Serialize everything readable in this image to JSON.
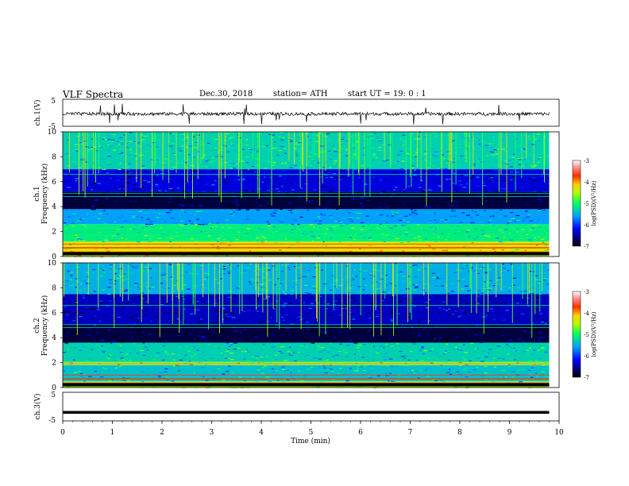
{
  "header": {
    "title": "VLF  Spectra",
    "date": "Dec.30, 2018",
    "station": "station= ATH",
    "start_ut": "start  UT  =    19: 0   : 1"
  },
  "chart_data": [
    {
      "type": "line",
      "panel": "ch1-waveform",
      "ylabel": "ch.1(V)",
      "ylim": [
        -5,
        5
      ],
      "yticks": [
        "5",
        "-5"
      ],
      "x": [
        0,
        9.8
      ],
      "description_values": {
        "baseline_v": -0.4
      }
    },
    {
      "type": "heatmap",
      "panel": "ch1-spectrogram",
      "ylabel_line1": "ch.1",
      "ylabel_line2": "Frequency  (kHz)",
      "ylim": [
        0,
        10
      ],
      "yticks": [
        "0",
        "2",
        "4",
        "6",
        "8",
        "10"
      ],
      "xlim": [
        0,
        9.8
      ],
      "colorbar": {
        "label": "log(PSD)(V²/Hz)",
        "ticks": [
          "-3",
          "-4",
          "-5",
          "-6",
          "-7"
        ],
        "range": [
          -7,
          -3
        ]
      },
      "bands": [
        {
          "f_low": 0.0,
          "f_high": 0.4,
          "level": -4.5
        },
        {
          "f_low": 0.4,
          "f_high": 1.2,
          "level": -4.3
        },
        {
          "f_low": 1.2,
          "f_high": 2.6,
          "level": -5.1
        },
        {
          "f_low": 2.6,
          "f_high": 3.8,
          "level": -5.6
        },
        {
          "f_low": 3.8,
          "f_high": 5.2,
          "level": -6.8
        },
        {
          "f_low": 5.2,
          "f_high": 7.0,
          "level": -6.3
        },
        {
          "f_low": 7.0,
          "f_high": 10.0,
          "level": -5.3
        }
      ]
    },
    {
      "type": "heatmap",
      "panel": "ch2-spectrogram",
      "ylabel_line1": "ch.2",
      "ylabel_line2": "Frequency  (kHz)",
      "ylim": [
        0,
        10
      ],
      "yticks": [
        "0",
        "2",
        "4",
        "6",
        "8",
        "10"
      ],
      "xlim": [
        0,
        9.8
      ],
      "colorbar": {
        "label": "log(PSD)(V²/Hz)",
        "ticks": [
          "-3",
          "-4",
          "-5",
          "-6",
          "-7"
        ],
        "range": [
          -7,
          -3
        ]
      },
      "bands": [
        {
          "f_low": 0.0,
          "f_high": 0.5,
          "level": -4.6
        },
        {
          "f_low": 0.5,
          "f_high": 1.8,
          "level": -5.4
        },
        {
          "f_low": 1.8,
          "f_high": 2.1,
          "level": -4.2
        },
        {
          "f_low": 2.1,
          "f_high": 3.6,
          "level": -5.3
        },
        {
          "f_low": 3.6,
          "f_high": 5.0,
          "level": -6.8
        },
        {
          "f_low": 5.0,
          "f_high": 7.5,
          "level": -6.4
        },
        {
          "f_low": 7.5,
          "f_high": 10.0,
          "level": -5.5
        }
      ]
    },
    {
      "type": "line",
      "panel": "ch3-waveform",
      "ylabel": "ch.3(V)",
      "ylim": [
        -5,
        5
      ],
      "yticks": [
        "5",
        "-5"
      ],
      "xlabel": "Time  (min)",
      "xlim": [
        0,
        10
      ],
      "xticks": [
        "0",
        "1",
        "2",
        "3",
        "4",
        "5",
        "6",
        "7",
        "8",
        "9",
        "10"
      ],
      "x": [
        0,
        9.8
      ],
      "description_values": {
        "baseline_v": -2.0
      }
    }
  ]
}
